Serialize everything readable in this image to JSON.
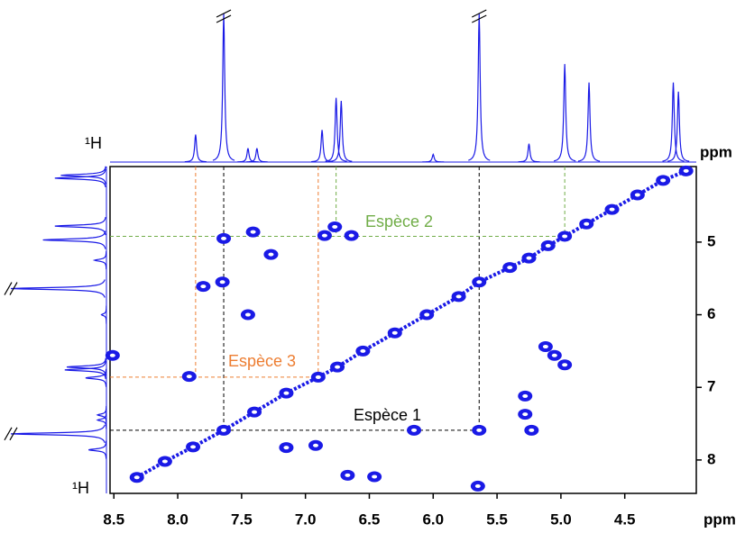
{
  "chart_data": {
    "type": "nmr2d",
    "x_label": "ppm",
    "projection_label": "ppm",
    "x_nucleus": "¹H",
    "y_nucleus": "¹H",
    "color": "#1a1ae6",
    "xlim": [
      8.53,
      3.94
    ],
    "ylim": [
      3.96,
      8.46
    ],
    "xticks": [
      8.5,
      {
        "value": 8,
        "label": "8.0"
      },
      7.5,
      {
        "value": 7,
        "label": "7.0"
      },
      6.5,
      {
        "value": 6,
        "label": "6.0"
      },
      5.5,
      {
        "value": 5,
        "label": "5.0"
      },
      4.5
    ],
    "yticks": [
      5,
      6,
      7,
      8
    ],
    "diagonal": {
      "x": [
        8.32,
        8.1,
        7.88,
        7.64,
        7.4,
        7.15,
        6.9,
        6.75,
        6.55,
        6.3,
        6.05,
        5.8,
        5.64,
        5.4,
        5.25,
        5.1,
        4.97,
        4.8,
        4.6,
        4.4,
        4.2,
        4.02
      ],
      "y": [
        8.24,
        8.02,
        7.82,
        7.59,
        7.34,
        7.08,
        6.86,
        6.72,
        6.5,
        6.25,
        6.0,
        5.75,
        5.55,
        5.35,
        5.22,
        5.05,
        4.92,
        4.75,
        4.55,
        4.35,
        4.15,
        4.02
      ]
    },
    "cross_peaks": {
      "x": [
        7.65,
        5.64,
        7.64,
        7.41,
        7.27,
        7.45,
        7.8,
        6.85,
        6.64,
        6.77,
        8.51,
        7.91,
        6.92,
        7.15,
        4.97,
        5.05,
        5.12,
        5.28,
        5.28,
        6.15,
        6.46,
        6.67,
        5.65,
        5.23
      ],
      "y": [
        5.55,
        7.59,
        4.95,
        4.86,
        5.17,
        6.0,
        5.61,
        4.91,
        4.91,
        4.79,
        6.56,
        6.85,
        7.8,
        7.83,
        6.69,
        6.56,
        6.44,
        7.37,
        7.12,
        7.59,
        8.23,
        8.21,
        8.36,
        7.59
      ]
    },
    "projection": {
      "x": [
        7.86,
        7.64,
        7.45,
        7.38,
        6.87,
        6.76,
        6.72,
        6.0,
        5.64,
        5.25,
        4.97,
        4.78,
        4.12,
        4.08
      ],
      "heights": [
        18,
        100,
        9,
        9,
        21,
        42,
        40,
        5,
        100,
        12,
        64,
        52,
        52,
        46
      ]
    },
    "species": [
      {
        "label": "Espèce 1",
        "color": "#000000",
        "shifts": [
          7.64,
          5.64
        ],
        "row": 7.59
      },
      {
        "label": "Espèce 2",
        "color": "#70ad47",
        "shifts": [
          6.76,
          4.97
        ],
        "row": 4.92
      },
      {
        "label": "Espèce 3",
        "color": "#ed7d31",
        "shifts": [
          7.86,
          6.9
        ],
        "row": 6.86
      }
    ]
  }
}
